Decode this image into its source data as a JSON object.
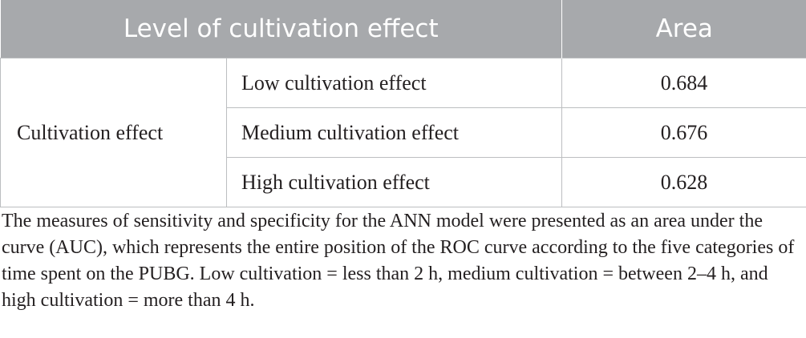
{
  "table": {
    "header": {
      "level": "Level of cultivation effect",
      "area": "Area"
    },
    "group_label": "Cultivation effect",
    "rows": [
      {
        "label": "Low cultivation effect",
        "value": "0.684"
      },
      {
        "label": "Medium cultivation effect",
        "value": "0.676"
      },
      {
        "label": "High cultivation effect",
        "value": "0.628"
      }
    ]
  },
  "footnote": "The measures of sensitivity and specificity for the ANN model were presented as an area under the curve (AUC), which represents the entire position of the ROC curve according to the five categories of time spent on the PUBG. Low cultivation = less than 2 h, medium cultivation = between 2–4 h, and high cultivation = more than 4 h."
}
